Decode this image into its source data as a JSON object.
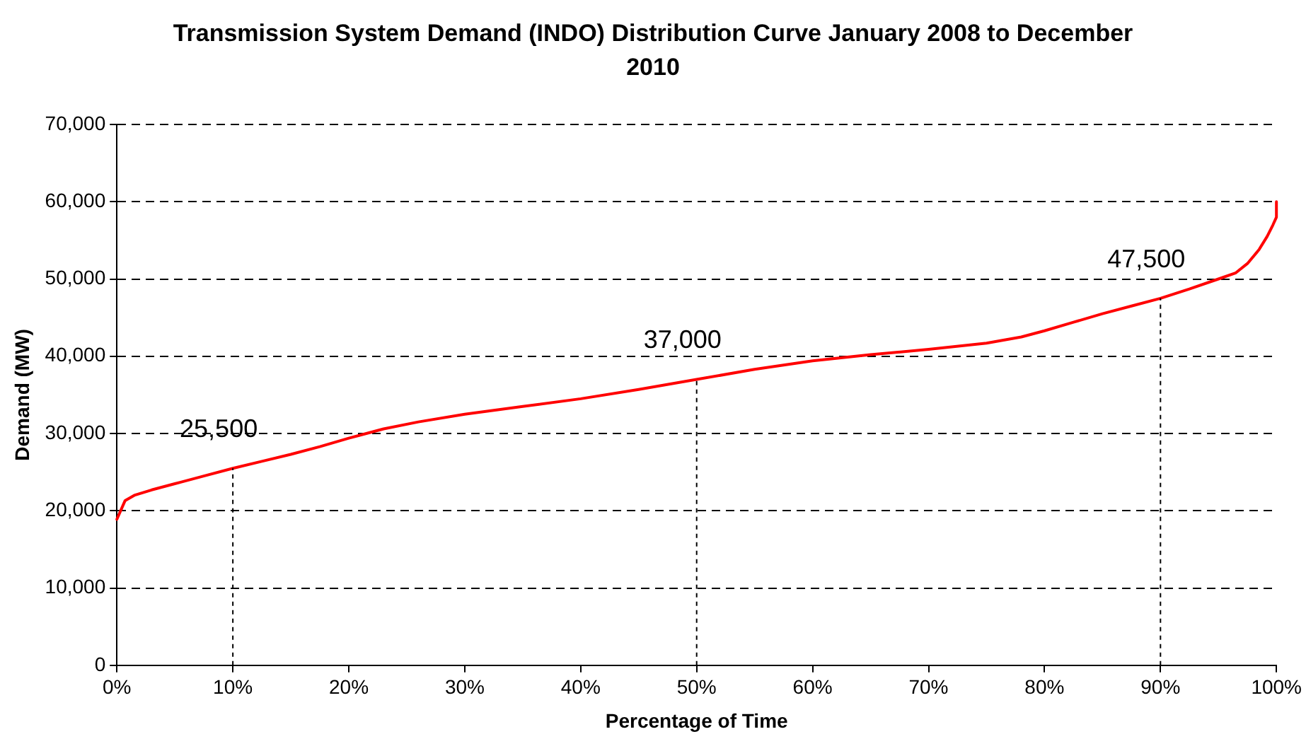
{
  "chart_data": {
    "type": "line",
    "title": "Transmission System Demand (INDO) Distribution Curve January 2008 to December 2010",
    "xlabel": "Percentage of Time",
    "ylabel": "Demand (MW)",
    "series": [
      {
        "color": "#ff0000",
        "x": [
          0,
          0.7,
          1.5,
          3,
          5,
          7.5,
          10,
          12.5,
          15,
          17.5,
          20,
          23,
          26,
          30,
          35,
          40,
          45,
          50,
          55,
          60,
          65,
          70,
          75,
          78,
          80,
          82.5,
          85,
          87.5,
          90,
          92.5,
          95,
          96.5,
          97.5,
          98.5,
          99.2,
          99.7,
          100,
          100
        ],
        "values": [
          18900,
          21300,
          22000,
          22700,
          23500,
          24500,
          25500,
          26400,
          27300,
          28300,
          29400,
          30600,
          31500,
          32500,
          33500,
          34500,
          35700,
          37000,
          38300,
          39400,
          40200,
          40900,
          41700,
          42500,
          43300,
          44400,
          45500,
          46500,
          47500,
          48700,
          50000,
          50800,
          52000,
          53800,
          55500,
          57000,
          58000,
          60000
        ]
      }
    ],
    "xlim": [
      0,
      100
    ],
    "xticks": [
      {
        "value": 0,
        "label": "0%"
      },
      {
        "value": 10,
        "label": "10%"
      },
      {
        "value": 20,
        "label": "20%"
      },
      {
        "value": 30,
        "label": "30%"
      },
      {
        "value": 40,
        "label": "40%"
      },
      {
        "value": 50,
        "label": "50%"
      },
      {
        "value": 60,
        "label": "60%"
      },
      {
        "value": 70,
        "label": "70%"
      },
      {
        "value": 80,
        "label": "80%"
      },
      {
        "value": 90,
        "label": "90%"
      },
      {
        "value": 100,
        "label": "100%"
      }
    ],
    "ylim": [
      0,
      70000
    ],
    "yticks": [
      {
        "value": 0,
        "label": "0"
      },
      {
        "value": 10000,
        "label": "10,000"
      },
      {
        "value": 20000,
        "label": "20,000"
      },
      {
        "value": 30000,
        "label": "30,000"
      },
      {
        "value": 40000,
        "label": "40,000"
      },
      {
        "value": 50000,
        "label": "50,000"
      },
      {
        "value": 60000,
        "label": "60,000"
      },
      {
        "value": 70000,
        "label": "70,000"
      }
    ],
    "annotations": [
      {
        "text": "25,500",
        "x": 10,
        "y": 25500
      },
      {
        "text": "37,000",
        "x": 50,
        "y": 37000
      },
      {
        "text": "47,500",
        "x": 90,
        "y": 47500
      }
    ],
    "grid": "y",
    "legend": false,
    "marker": "none",
    "line_style": "solid"
  }
}
